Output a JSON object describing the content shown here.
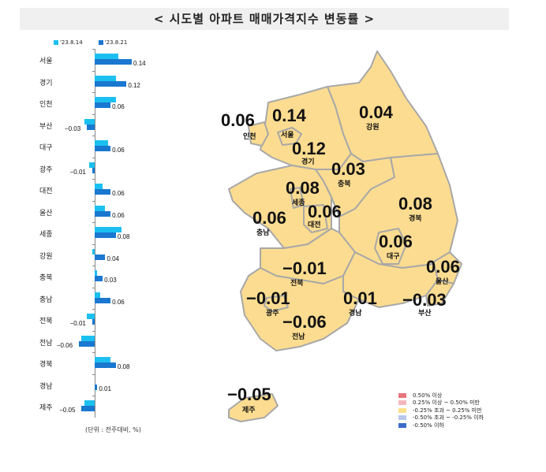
{
  "title": "< 시도별 아파트 매매가격지수 변동률 >",
  "legend_top": [
    {
      "label": "'23.8.14",
      "color": "#1cc0f0"
    },
    {
      "label": "'23.8.21",
      "color": "#1a78d0"
    }
  ],
  "unit_note": "(단위 : 전주대비, %)",
  "map_legend": [
    {
      "label": "0.50% 이상",
      "color": "#e8747c"
    },
    {
      "label": "0.25% 이상 ~ 0.50% 미만",
      "color": "#f4b8bc"
    },
    {
      "label": "-0.25% 초과 ~ 0.25% 미만",
      "color": "#fbe08c"
    },
    {
      "label": "-0.50% 초과 ~ -0.25% 이하",
      "color": "#b8c8ec"
    },
    {
      "label": "-0.50% 이하",
      "color": "#3a6cc8"
    }
  ],
  "map_regions": [
    {
      "name": "인천",
      "value": "0.06"
    },
    {
      "name": "서울",
      "value": "0.14"
    },
    {
      "name": "경기",
      "value": "0.12"
    },
    {
      "name": "강원",
      "value": "0.04"
    },
    {
      "name": "충북",
      "value": "0.03"
    },
    {
      "name": "세종",
      "value": "0.08"
    },
    {
      "name": "대전",
      "value": "0.06"
    },
    {
      "name": "충남",
      "value": "0.06"
    },
    {
      "name": "경북",
      "value": "0.08"
    },
    {
      "name": "대구",
      "value": "0.06"
    },
    {
      "name": "울산",
      "value": "0.06"
    },
    {
      "name": "전북",
      "value": "-0.01"
    },
    {
      "name": "광주",
      "value": "-0.01"
    },
    {
      "name": "경남",
      "value": "0.01"
    },
    {
      "name": "부산",
      "value": "-0.03"
    },
    {
      "name": "전남",
      "value": "-0.06"
    },
    {
      "name": "제주",
      "value": "-0.05"
    }
  ],
  "chart_data": [
    {
      "type": "bar",
      "orientation": "horizontal",
      "title": "시도별 아파트 매매가격지수 변동률",
      "xlabel": "",
      "ylabel": "",
      "unit": "전주대비, %",
      "categories": [
        "서울",
        "경기",
        "인천",
        "부산",
        "대구",
        "광주",
        "대전",
        "울산",
        "세종",
        "강원",
        "충북",
        "충남",
        "전북",
        "전남",
        "경북",
        "경남",
        "제주"
      ],
      "series": [
        {
          "name": "'23.8.14",
          "color": "#1cc0f0",
          "values": [
            0.09,
            0.08,
            0.08,
            -0.04,
            0.05,
            -0.02,
            0.03,
            0.04,
            0.1,
            -0.01,
            0.01,
            0.02,
            -0.03,
            -0.05,
            0.06,
            0.0,
            -0.04
          ]
        },
        {
          "name": "'23.8.21",
          "color": "#1a78d0",
          "values": [
            0.14,
            0.12,
            0.06,
            -0.03,
            0.06,
            -0.01,
            0.06,
            0.06,
            0.08,
            0.04,
            0.03,
            0.06,
            -0.01,
            -0.06,
            0.08,
            0.01,
            -0.05
          ]
        }
      ],
      "data_labels": [
        "0.14",
        "0.12",
        "0.06",
        "-0.03",
        "0.06",
        "-0.01",
        "0.06",
        "0.06",
        "0.08",
        "0.04",
        "0.03",
        "0.06",
        "-0.01",
        "-0.06",
        "0.08",
        "0.01",
        "-0.05"
      ],
      "legend_position": "top",
      "grid": false
    },
    {
      "type": "heatmap",
      "subtype": "choropleth-map",
      "categories": [
        "인천",
        "서울",
        "경기",
        "강원",
        "충북",
        "세종",
        "대전",
        "충남",
        "경북",
        "대구",
        "울산",
        "전북",
        "광주",
        "경남",
        "부산",
        "전남",
        "제주"
      ],
      "values": [
        0.06,
        0.14,
        0.12,
        0.04,
        0.03,
        0.08,
        0.06,
        0.06,
        0.08,
        0.06,
        0.06,
        -0.01,
        -0.01,
        0.01,
        -0.03,
        -0.06,
        -0.05
      ],
      "legend": [
        "0.50% 이상",
        "0.25% 이상 ~ 0.50% 미만",
        "-0.25% 초과 ~ 0.25% 미만",
        "-0.50% 초과 ~ -0.25% 이하",
        "-0.50% 이하"
      ]
    }
  ]
}
